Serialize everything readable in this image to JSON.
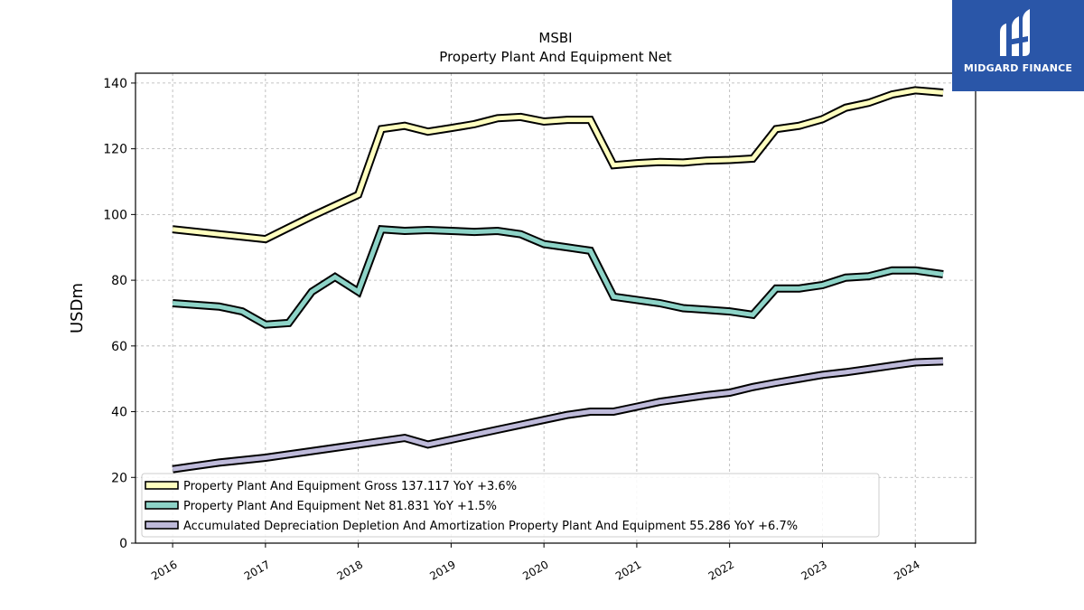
{
  "chart_data": {
    "type": "line",
    "title": "MSBI",
    "subtitle": "Property Plant And Equipment Net",
    "xlabel": "",
    "ylabel": "USDm",
    "ylim": [
      0,
      143
    ],
    "xlim": [
      2015.6,
      2024.65
    ],
    "yticks": [
      0,
      20,
      40,
      60,
      80,
      100,
      120,
      140
    ],
    "xticks": [
      2016,
      2017,
      2018,
      2019,
      2020,
      2021,
      2022,
      2023,
      2024
    ],
    "grid": true,
    "legend_position": "lower-left",
    "series": [
      {
        "name": "Property Plant And Equipment Gross",
        "legend_label": "Property Plant And Equipment Gross  137.117 YoY +3.6%",
        "color": "#ffffbf",
        "x": [
          2016.0,
          2016.5,
          2017.0,
          2017.5,
          2018.0,
          2018.25,
          2018.5,
          2018.75,
          2019.0,
          2019.25,
          2019.5,
          2019.75,
          2020.0,
          2020.25,
          2020.5,
          2020.75,
          2021.0,
          2021.25,
          2021.5,
          2021.75,
          2022.0,
          2022.25,
          2022.5,
          2022.75,
          2023.0,
          2023.25,
          2023.5,
          2023.75,
          2024.0,
          2024.3
        ],
        "values": [
          95.5,
          94.0,
          92.5,
          99.5,
          106.0,
          126.0,
          127.0,
          125.2,
          126.3,
          127.5,
          129.3,
          129.7,
          128.3,
          128.8,
          128.8,
          115.0,
          115.6,
          116.0,
          115.8,
          116.4,
          116.6,
          117.0,
          126.0,
          127.0,
          129.0,
          132.5,
          134.0,
          136.5,
          137.8,
          137.1
        ]
      },
      {
        "name": "Property Plant And Equipment Net",
        "legend_label": "Property Plant And Equipment Net  81.831 YoY +1.5%",
        "color": "#8dd3c7",
        "x": [
          2016.0,
          2016.5,
          2016.75,
          2017.0,
          2017.25,
          2017.5,
          2017.75,
          2018.0,
          2018.25,
          2018.5,
          2018.75,
          2019.0,
          2019.25,
          2019.5,
          2019.75,
          2020.0,
          2020.25,
          2020.5,
          2020.75,
          2021.0,
          2021.25,
          2021.5,
          2021.75,
          2022.0,
          2022.25,
          2022.5,
          2022.75,
          2023.0,
          2023.25,
          2023.5,
          2023.75,
          2024.0,
          2024.3
        ],
        "values": [
          73.0,
          72.0,
          70.5,
          66.5,
          67.0,
          76.5,
          81.0,
          76.5,
          95.5,
          95.0,
          95.3,
          95.0,
          94.7,
          95.0,
          94.0,
          91.0,
          90.0,
          89.0,
          75.0,
          74.0,
          73.0,
          71.5,
          71.0,
          70.5,
          69.5,
          77.5,
          77.5,
          78.5,
          80.8,
          81.2,
          83.0,
          83.0,
          81.8
        ]
      },
      {
        "name": "Accumulated Depreciation Depletion And Amortization Property Plant And Equipment",
        "legend_label": "Accumulated Depreciation Depletion And Amortization Property Plant And Equipment  55.286 YoY +6.7%",
        "color": "#bebada",
        "x": [
          2016.0,
          2016.5,
          2017.0,
          2017.5,
          2018.0,
          2018.5,
          2018.75,
          2019.0,
          2019.25,
          2019.5,
          2019.75,
          2020.0,
          2020.25,
          2020.5,
          2020.75,
          2021.0,
          2021.25,
          2021.5,
          2021.75,
          2022.0,
          2022.25,
          2022.5,
          2022.75,
          2023.0,
          2023.25,
          2023.5,
          2023.75,
          2024.0,
          2024.3
        ],
        "values": [
          22.5,
          24.5,
          26.0,
          28.0,
          30.0,
          32.0,
          30.0,
          31.5,
          33.0,
          34.5,
          36.0,
          37.5,
          39.0,
          40.0,
          40.0,
          41.5,
          43.0,
          44.0,
          45.0,
          45.8,
          47.5,
          48.8,
          50.0,
          51.2,
          52.0,
          53.0,
          54.0,
          55.0,
          55.3
        ]
      }
    ]
  },
  "logo": {
    "text": "MIDGARD FINANCE"
  }
}
